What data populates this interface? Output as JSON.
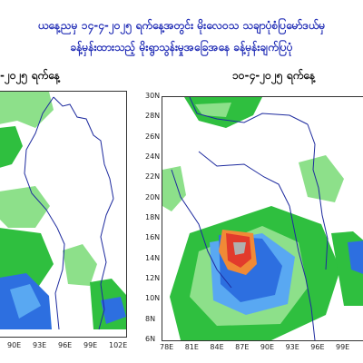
{
  "header": {
    "title_line1": "ယနေ့ညမှ ၁၄-၄-၂၀၂၅ ရက်နေ့အတွင်း မိုးလေဝသ သချာပုံစံပြမော်ဒယ်မှ",
    "title_line2": "ခန့်မှန်းထားသည့် မိုးရွာသွန်းမှုအခြေအနေ ခန့်မှန်းချက်ပြပုံ"
  },
  "panels": {
    "left": {
      "date_label": "-၂၀၂၅ ရက်နေ့"
    },
    "right": {
      "date_label": "၁၀-၄-၂၀၂၅ ရက်နေ့"
    }
  },
  "axes": {
    "left_x_ticks": [
      "90E",
      "93E",
      "96E",
      "99E",
      "102E"
    ],
    "right_x_ticks": [
      "78E",
      "81E",
      "84E",
      "87E",
      "90E",
      "93E",
      "96E",
      "99E"
    ],
    "right_y_ticks": [
      "30N",
      "28N",
      "26N",
      "24N",
      "22N",
      "20N",
      "18N",
      "16N",
      "14N",
      "12N",
      "10N",
      "8N",
      "6N"
    ]
  },
  "colors": {
    "title_color": "#1f2bb5",
    "light_green": "#8de08a",
    "green": "#2fbf3f",
    "blue": "#2d6fe0",
    "light_blue": "#59a8f2",
    "red": "#e23b2c",
    "orange": "#f08a36",
    "border_line": "#1d2a9e"
  }
}
